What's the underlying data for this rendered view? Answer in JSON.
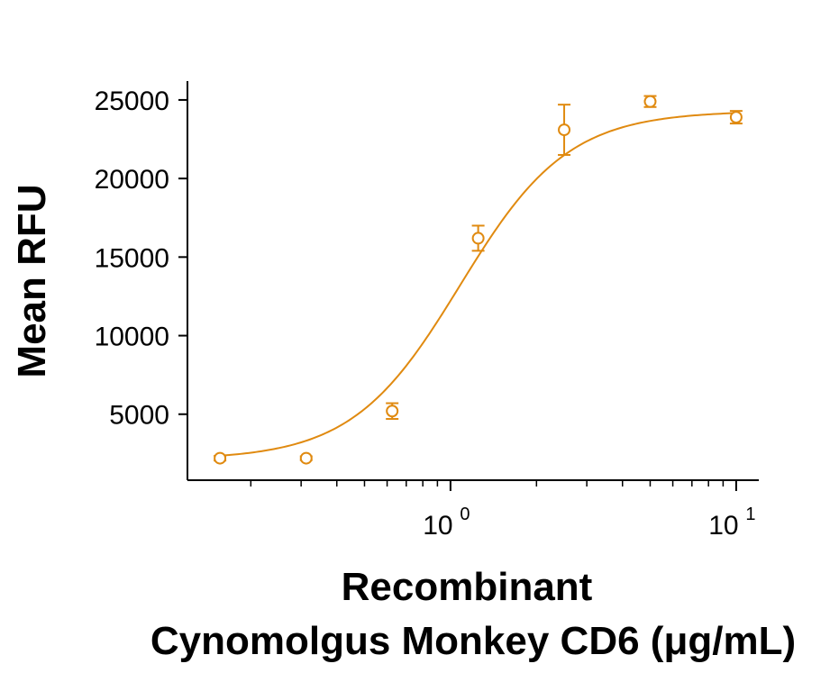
{
  "chart_data": {
    "type": "scatter",
    "title": "",
    "xlabel_line1": "Recombinant",
    "xlabel_line2": "Cynomolgus Monkey CD6 (μg/mL)",
    "ylabel": "Mean RFU",
    "x_scale": "log",
    "xlim": [
      0.12,
      12
    ],
    "ylim": [
      800,
      26200
    ],
    "grid": false,
    "legend": "none",
    "color": "#E08A10",
    "y_ticks": [
      {
        "value": 5000,
        "label": "5000"
      },
      {
        "value": 10000,
        "label": "10000"
      },
      {
        "value": 15000,
        "label": "15000"
      },
      {
        "value": 20000,
        "label": "20000"
      },
      {
        "value": 25000,
        "label": "25000"
      }
    ],
    "x_major_ticks": [
      {
        "value": 1,
        "base": "10",
        "exp": "0"
      },
      {
        "value": 10,
        "base": "10",
        "exp": "1"
      }
    ],
    "x_minor_ticks": [
      0.2,
      0.3,
      0.4,
      0.5,
      0.6,
      0.7,
      0.8,
      0.9,
      2,
      3,
      4,
      5,
      6,
      7,
      8,
      9
    ],
    "series": [
      {
        "type": "scatter",
        "points": [
          {
            "x": 0.156,
            "y": 2200,
            "err": 150
          },
          {
            "x": 0.3125,
            "y": 2200,
            "err": 120
          },
          {
            "x": 0.625,
            "y": 5200,
            "err": 500
          },
          {
            "x": 1.25,
            "y": 16200,
            "err": 800
          },
          {
            "x": 2.5,
            "y": 23100,
            "err": 1600
          },
          {
            "x": 5,
            "y": 24900,
            "err": 350
          },
          {
            "x": 10,
            "y": 23900,
            "err": 400
          }
        ]
      },
      {
        "type": "line",
        "fit": "four-parameter-logistic",
        "bottom": 2100,
        "top": 24300,
        "ec50": 1.08,
        "hill": 2.3,
        "x_range": [
          0.156,
          10
        ]
      }
    ]
  }
}
